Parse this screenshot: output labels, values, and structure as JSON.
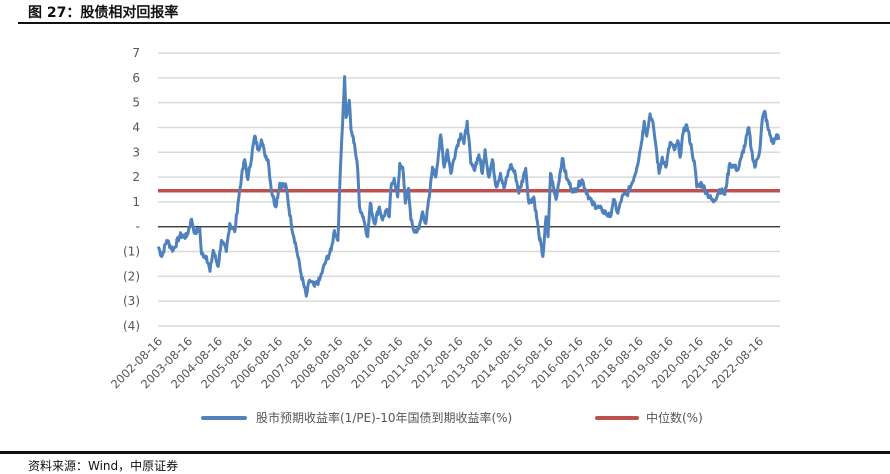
{
  "header": {
    "title": "图 27：股债相对回报率"
  },
  "footer": {
    "source": "资料来源：Wind，中原证券"
  },
  "chart_data": {
    "type": "line",
    "title": "图 27：股债相对回报率",
    "xlabel": "",
    "ylabel": "",
    "ylim": [
      -4,
      7
    ],
    "xlim": [
      2002.0,
      2023.3
    ],
    "grid": true,
    "legend_placement": "bottom",
    "y_ticks": [
      "7",
      "6",
      "5",
      "4",
      "3",
      "2",
      "1",
      "-",
      "(1)",
      "(2)",
      "(3)",
      "(4)"
    ],
    "x_ticks": [
      "2002-08-16",
      "2003-08-16",
      "2004-08-16",
      "2005-08-16",
      "2006-08-16",
      "2007-08-16",
      "2008-08-16",
      "2009-08-16",
      "2010-08-16",
      "2011-08-16",
      "2012-08-16",
      "2013-08-16",
      "2014-08-16",
      "2015-08-16",
      "2016-08-16",
      "2017-08-16",
      "2018-08-16",
      "2019-08-16",
      "2020-08-16",
      "2021-08-16",
      "2022-08-16"
    ],
    "colors": {
      "series": "#4f81bd",
      "median": "#c0504d",
      "zero": "#222222",
      "grid": "#d9d9d9"
    },
    "series": [
      {
        "name": "股市预期收益率(1/PE)-10年国债到期收益率(%)",
        "points": [
          [
            2002.01,
            -0.8
          ],
          [
            2002.13,
            -1.2
          ],
          [
            2002.3,
            -0.55
          ],
          [
            2002.52,
            -0.95
          ],
          [
            2002.75,
            -0.35
          ],
          [
            2002.98,
            -0.4
          ],
          [
            2003.15,
            0.3
          ],
          [
            2003.26,
            -0.27
          ],
          [
            2003.43,
            -0.07
          ],
          [
            2003.49,
            -1.1
          ],
          [
            2003.66,
            -1.2
          ],
          [
            2003.78,
            -1.8
          ],
          [
            2003.89,
            -0.95
          ],
          [
            2004.06,
            -1.6
          ],
          [
            2004.17,
            -0.55
          ],
          [
            2004.34,
            -1.0
          ],
          [
            2004.46,
            0.13
          ],
          [
            2004.63,
            -0.2
          ],
          [
            2004.74,
            0.95
          ],
          [
            2004.86,
            2.0
          ],
          [
            2004.97,
            2.7
          ],
          [
            2005.08,
            1.9
          ],
          [
            2005.31,
            3.65
          ],
          [
            2005.43,
            3.1
          ],
          [
            2005.54,
            3.5
          ],
          [
            2005.65,
            2.95
          ],
          [
            2005.77,
            2.7
          ],
          [
            2005.88,
            1.5
          ],
          [
            2006.03,
            0.8
          ],
          [
            2006.17,
            1.75
          ],
          [
            2006.39,
            1.6
          ],
          [
            2006.56,
            0.13
          ],
          [
            2006.73,
            -0.8
          ],
          [
            2006.9,
            -1.9
          ],
          [
            2007.08,
            -2.8
          ],
          [
            2007.19,
            -2.15
          ],
          [
            2007.36,
            -2.4
          ],
          [
            2007.53,
            -2.15
          ],
          [
            2007.64,
            -1.75
          ],
          [
            2007.76,
            -1.35
          ],
          [
            2007.93,
            -0.95
          ],
          [
            2008.04,
            -0.15
          ],
          [
            2008.16,
            -0.55
          ],
          [
            2008.21,
            1.1
          ],
          [
            2008.27,
            2.95
          ],
          [
            2008.39,
            6.05
          ],
          [
            2008.44,
            4.4
          ],
          [
            2008.55,
            5.1
          ],
          [
            2008.61,
            3.9
          ],
          [
            2008.73,
            3.35
          ],
          [
            2008.84,
            2.3
          ],
          [
            2008.9,
            0.8
          ],
          [
            2009.03,
            0.4
          ],
          [
            2009.18,
            -0.4
          ],
          [
            2009.27,
            0.95
          ],
          [
            2009.41,
            0.13
          ],
          [
            2009.58,
            0.8
          ],
          [
            2009.69,
            0.27
          ],
          [
            2009.81,
            0.67
          ],
          [
            2009.92,
            0.4
          ],
          [
            2009.98,
            1.6
          ],
          [
            2010.09,
            1.95
          ],
          [
            2010.21,
            1.2
          ],
          [
            2010.28,
            2.55
          ],
          [
            2010.38,
            2.4
          ],
          [
            2010.47,
            0.95
          ],
          [
            2010.58,
            1.55
          ],
          [
            2010.66,
            0.27
          ],
          [
            2010.77,
            -0.2
          ],
          [
            2010.94,
            -0.07
          ],
          [
            2011.06,
            0.6
          ],
          [
            2011.17,
            0.13
          ],
          [
            2011.29,
            1.2
          ],
          [
            2011.4,
            2.4
          ],
          [
            2011.51,
            2.0
          ],
          [
            2011.68,
            3.7
          ],
          [
            2011.8,
            2.4
          ],
          [
            2011.91,
            3.1
          ],
          [
            2012.03,
            2.15
          ],
          [
            2012.2,
            3.1
          ],
          [
            2012.37,
            3.75
          ],
          [
            2012.48,
            3.35
          ],
          [
            2012.59,
            4.25
          ],
          [
            2012.71,
            2.55
          ],
          [
            2012.82,
            2.3
          ],
          [
            2012.99,
            2.9
          ],
          [
            2013.11,
            2.15
          ],
          [
            2013.2,
            3.1
          ],
          [
            2013.33,
            2.0
          ],
          [
            2013.45,
            2.7
          ],
          [
            2013.58,
            1.6
          ],
          [
            2013.73,
            2.15
          ],
          [
            2013.85,
            1.55
          ],
          [
            2014.07,
            2.5
          ],
          [
            2014.24,
            2.1
          ],
          [
            2014.36,
            1.35
          ],
          [
            2014.59,
            2.35
          ],
          [
            2014.7,
            0.95
          ],
          [
            2014.87,
            1.2
          ],
          [
            2015.04,
            -0.27
          ],
          [
            2015.18,
            -1.2
          ],
          [
            2015.29,
            0.4
          ],
          [
            2015.36,
            -0.4
          ],
          [
            2015.44,
            2.15
          ],
          [
            2015.63,
            1.1
          ],
          [
            2015.84,
            2.75
          ],
          [
            2016.01,
            1.9
          ],
          [
            2016.24,
            1.4
          ],
          [
            2016.52,
            1.9
          ],
          [
            2016.69,
            1.35
          ],
          [
            2016.86,
            0.95
          ],
          [
            2017.2,
            0.67
          ],
          [
            2017.49,
            0.4
          ],
          [
            2017.6,
            1.1
          ],
          [
            2017.75,
            0.54
          ],
          [
            2017.89,
            1.2
          ],
          [
            2018.06,
            1.3
          ],
          [
            2018.23,
            1.75
          ],
          [
            2018.4,
            2.4
          ],
          [
            2018.55,
            3.35
          ],
          [
            2018.65,
            4.25
          ],
          [
            2018.74,
            3.65
          ],
          [
            2018.85,
            4.55
          ],
          [
            2018.97,
            4.0
          ],
          [
            2019.08,
            2.95
          ],
          [
            2019.16,
            2.15
          ],
          [
            2019.27,
            2.8
          ],
          [
            2019.39,
            2.4
          ],
          [
            2019.54,
            3.4
          ],
          [
            2019.68,
            3.1
          ],
          [
            2019.82,
            3.4
          ],
          [
            2019.88,
            2.8
          ],
          [
            2019.99,
            3.8
          ],
          [
            2020.11,
            4.1
          ],
          [
            2020.28,
            3.1
          ],
          [
            2020.39,
            2.4
          ],
          [
            2020.45,
            1.6
          ],
          [
            2020.62,
            1.75
          ],
          [
            2020.79,
            1.35
          ],
          [
            2021.02,
            1.0
          ],
          [
            2021.24,
            1.5
          ],
          [
            2021.41,
            1.3
          ],
          [
            2021.58,
            2.55
          ],
          [
            2021.75,
            2.4
          ],
          [
            2021.87,
            2.3
          ],
          [
            2021.98,
            2.8
          ],
          [
            2022.12,
            3.4
          ],
          [
            2022.23,
            4.0
          ],
          [
            2022.32,
            3.1
          ],
          [
            2022.44,
            2.4
          ],
          [
            2022.61,
            3.1
          ],
          [
            2022.69,
            4.3
          ],
          [
            2022.78,
            4.65
          ],
          [
            2022.9,
            3.9
          ],
          [
            2023.06,
            3.35
          ],
          [
            2023.18,
            3.7
          ],
          [
            2023.26,
            3.5
          ]
        ]
      },
      {
        "name": "中位数(%)",
        "value": 1.45
      }
    ]
  }
}
